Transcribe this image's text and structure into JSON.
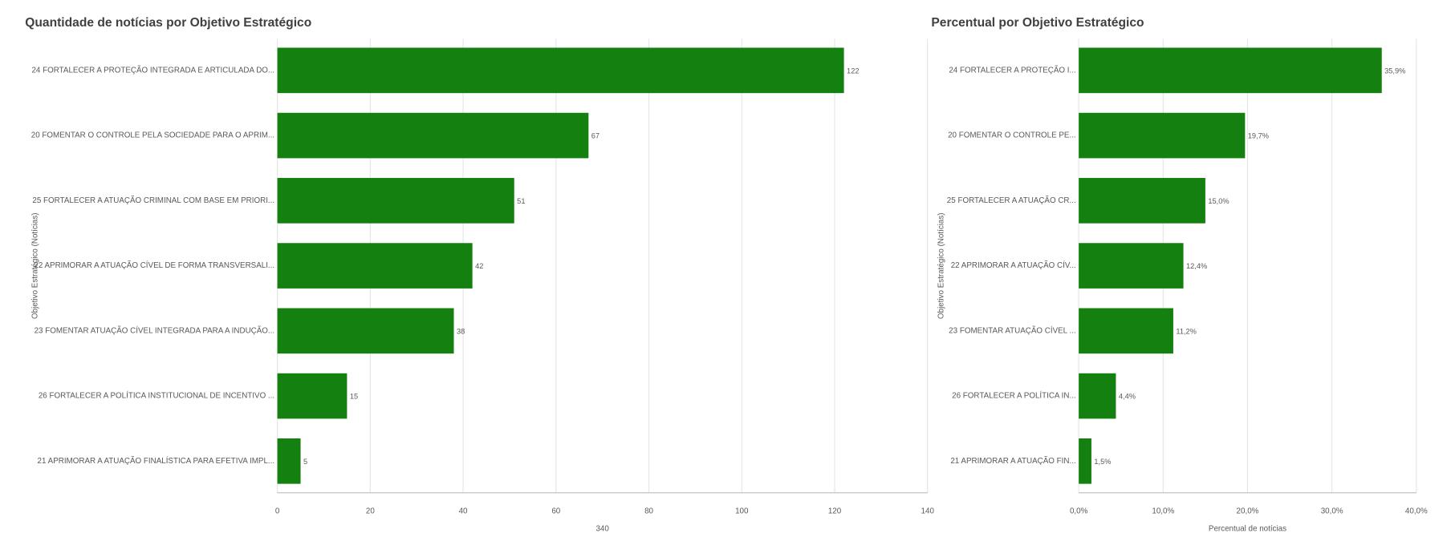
{
  "chart_data": [
    {
      "type": "bar",
      "orientation": "horizontal",
      "title": "Quantidade de notícias por Objetivo Estratégico",
      "ylabel": "Objetivo Estratégico (Notícias)",
      "xlabel": "340",
      "categories": [
        "24 FORTALECER A PROTEÇÃO INTEGRADA E ARTICULADA DO...",
        "20 FOMENTAR O CONTROLE PELA SOCIEDADE PARA O APRIM...",
        "25 FORTALECER A ATUAÇÃO CRIMINAL COM BASE EM PRIORI...",
        "22 APRIMORAR A ATUAÇÃO CÍVEL DE FORMA TRANSVERSALI...",
        "23 FOMENTAR ATUAÇÃO CÍVEL INTEGRADA PARA A INDUÇÃO...",
        "26 FORTALECER A POLÍTICA INSTITUCIONAL DE INCENTIVO ...",
        "21 APRIMORAR A ATUAÇÃO FINALÍSTICA PARA EFETIVA IMPL..."
      ],
      "values": [
        122,
        67,
        51,
        42,
        38,
        15,
        5
      ],
      "color": "#13800f",
      "xlim": [
        0,
        140
      ],
      "xticks": [
        0,
        20,
        40,
        60,
        80,
        100,
        120,
        140
      ],
      "grid": true
    },
    {
      "type": "bar",
      "orientation": "horizontal",
      "title": "Percentual por Objetivo Estratégico",
      "ylabel": "Objetivo Estratégico (Notícias)",
      "xlabel": "Percentual de notícias",
      "categories": [
        "24 FORTALECER A PROTEÇÃO I...",
        "20 FOMENTAR O CONTROLE PE...",
        "25 FORTALECER A ATUAÇÃO CR...",
        "22 APRIMORAR A ATUAÇÃO CÍV...",
        "23 FOMENTAR ATUAÇÃO CÍVEL ...",
        "26 FORTALECER A POLÍTICA IN...",
        "21 APRIMORAR A ATUAÇÃO FIN..."
      ],
      "values": [
        35.9,
        19.7,
        15.0,
        12.4,
        11.2,
        4.4,
        1.5
      ],
      "value_labels": [
        "35,9%",
        "19,7%",
        "15,0%",
        "12,4%",
        "11,2%",
        "4,4%",
        "1,5%"
      ],
      "color": "#13800f",
      "xlim": [
        0,
        40
      ],
      "xticks": [
        {
          "value": 0,
          "label": "0,0%"
        },
        {
          "value": 10,
          "label": "10,0%"
        },
        {
          "value": 20,
          "label": "20,0%"
        },
        {
          "value": 30,
          "label": "30,0%"
        },
        {
          "value": 40,
          "label": "40,0%"
        }
      ],
      "grid": true
    }
  ]
}
